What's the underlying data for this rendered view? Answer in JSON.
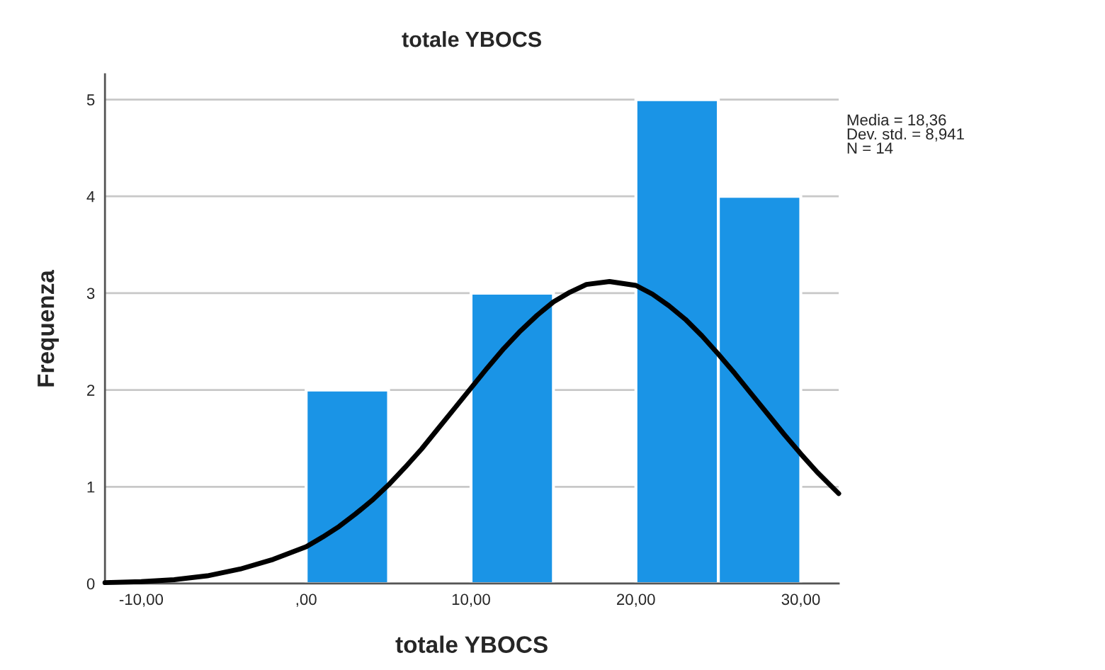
{
  "chart_data": {
    "type": "histogram",
    "title": "totale YBOCS",
    "xlabel": "totale YBOCS",
    "ylabel": "Frequenza",
    "bins": [
      0,
      5,
      10,
      15,
      20,
      25,
      30
    ],
    "values": [
      2,
      0,
      3,
      0,
      5,
      4
    ],
    "color": "#1a94e6",
    "series": [
      {
        "type": "line",
        "color": "#000000",
        "x": [
          -12.2,
          -10,
          -8,
          -6,
          -4,
          -2,
          0,
          1,
          2,
          3,
          4,
          5,
          6,
          7,
          8,
          9,
          10,
          11,
          12,
          13,
          14,
          15,
          16,
          17,
          18.4,
          20,
          21,
          22,
          23,
          24,
          25,
          26,
          27,
          28,
          29,
          30,
          31,
          32.3
        ],
        "values": [
          0.01,
          0.02,
          0.04,
          0.08,
          0.15,
          0.25,
          0.38,
          0.48,
          0.59,
          0.72,
          0.86,
          1.02,
          1.2,
          1.39,
          1.6,
          1.81,
          2.02,
          2.23,
          2.43,
          2.61,
          2.77,
          2.91,
          3.01,
          3.09,
          3.12,
          3.08,
          2.99,
          2.87,
          2.73,
          2.56,
          2.37,
          2.17,
          1.96,
          1.75,
          1.54,
          1.34,
          1.15,
          0.93
        ]
      }
    ],
    "annotations": [
      "Media = 18,36\nDev. std. = 8,941\nN = 14"
    ],
    "xlim": [
      -12.2,
      32.3
    ],
    "ylim": [
      0,
      5.26
    ],
    "xticks": [
      {
        "value": -10,
        "label": "-10,00"
      },
      {
        "value": 0,
        "label": ",00"
      },
      {
        "value": 10,
        "label": "10,00"
      },
      {
        "value": 20,
        "label": "20,00"
      },
      {
        "value": 30,
        "label": "30,00"
      }
    ],
    "yticks": [
      0,
      1,
      2,
      3,
      4,
      5
    ],
    "grid": "y",
    "legend": false
  }
}
